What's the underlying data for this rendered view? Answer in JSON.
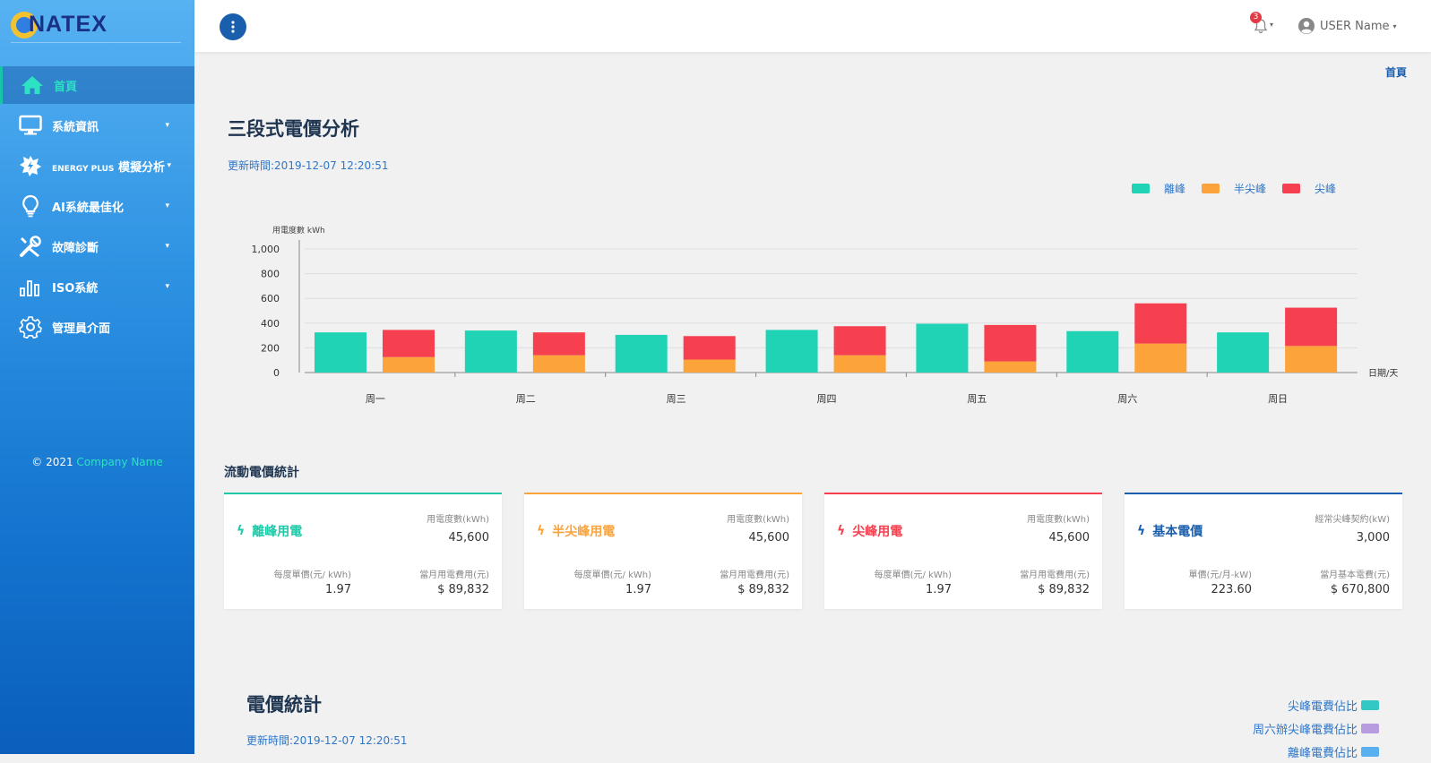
{
  "brand": {
    "logo_text": "NATEX"
  },
  "sidebar": {
    "items": [
      {
        "label": "首頁",
        "icon": "home-icon",
        "active": true
      },
      {
        "label": "系統資訊",
        "icon": "monitor-icon",
        "caret": "▾"
      },
      {
        "label": "ENERGY PLUS 模擬分析",
        "label_small": "ENERGY PLUS",
        "label_main": "模擬分析",
        "icon": "energy-icon",
        "caret": "▾"
      },
      {
        "label": "AI系統最佳化",
        "icon": "lightbulb-icon",
        "caret": "▾"
      },
      {
        "label": "故障診斷",
        "icon": "tools-icon",
        "caret": "▾"
      },
      {
        "label": "ISO系統",
        "icon": "bar-chart-icon",
        "caret": "▾"
      },
      {
        "label": "管理員介面",
        "icon": "gear-icon"
      }
    ],
    "copyright_prefix": "© 2021 ",
    "copyright_company": "Company Name"
  },
  "topbar": {
    "notification_count": "3",
    "user_name": "USER Name",
    "breadcrumb": "首頁"
  },
  "section1": {
    "title": "三段式電價分析",
    "updated": "更新時間:2019-12-07 12:20:51",
    "legend": [
      {
        "label": "離峰",
        "color": "#1fd3b4"
      },
      {
        "label": "半尖峰",
        "color": "#fca33a"
      },
      {
        "label": "尖峰",
        "color": "#f6404f"
      }
    ]
  },
  "chart_data": {
    "type": "bar",
    "ylabel": "用電度數 kWh",
    "xlabel": "日期/天",
    "ylim": [
      0,
      1000
    ],
    "yticks": [
      "0",
      "200",
      "400",
      "600",
      "800",
      "1,000"
    ],
    "ytick_values": [
      0,
      200,
      400,
      600,
      800,
      1000
    ],
    "categories": [
      "周一",
      "周二",
      "周三",
      "周四",
      "周五",
      "周六",
      "周日"
    ],
    "series": [
      {
        "name": "離峰",
        "values": [
          325,
          340,
          305,
          345,
          395,
          335,
          325
        ]
      },
      {
        "name": "半尖峰",
        "values": [
          125,
          140,
          105,
          140,
          90,
          235,
          215
        ]
      },
      {
        "name": "尖峰",
        "values": [
          220,
          185,
          190,
          235,
          295,
          325,
          310
        ]
      }
    ],
    "grid": true
  },
  "section2": {
    "title": "流動電價統計",
    "cards": [
      {
        "title": "離峰用電",
        "color": "#1fc9a8",
        "top_label": "用電度數(kWh)",
        "top_value": "45,600",
        "bl_label": "每度單價(元/ kWh)",
        "bl_value": "1.97",
        "br_label": "當月用電費用(元)",
        "br_value": "$ 89,832"
      },
      {
        "title": "半尖峰用電",
        "color": "#fca33a",
        "top_label": "用電度數(kWh)",
        "top_value": "45,600",
        "bl_label": "每度單價(元/ kWh)",
        "bl_value": "1.97",
        "br_label": "當月用電費用(元)",
        "br_value": "$ 89,832"
      },
      {
        "title": "尖峰用電",
        "color": "#f6404f",
        "top_label": "用電度數(kWh)",
        "top_value": "45,600",
        "bl_label": "每度單價(元/ kWh)",
        "bl_value": "1.97",
        "br_label": "當月用電費用(元)",
        "br_value": "$ 89,832"
      },
      {
        "title": "基本電價",
        "color": "#1a5fae",
        "top_label": "經常尖峰契約(kW)",
        "top_value": "3,000",
        "bl_label": "單價(元/月-kW)",
        "bl_value": "223.60",
        "br_label": "當月基本電費(元)",
        "br_value": "$ 670,800"
      }
    ]
  },
  "section3": {
    "title": "電價統計",
    "updated": "更新時間:2019-12-07 12:20:51",
    "legend": [
      {
        "label": "尖峰電費佔比",
        "color": "#34c8c4"
      },
      {
        "label": "周六辦尖峰電費佔比",
        "color": "#b79ce0"
      },
      {
        "label": "離峰電費佔比",
        "color": "#5ab0ee"
      }
    ]
  }
}
